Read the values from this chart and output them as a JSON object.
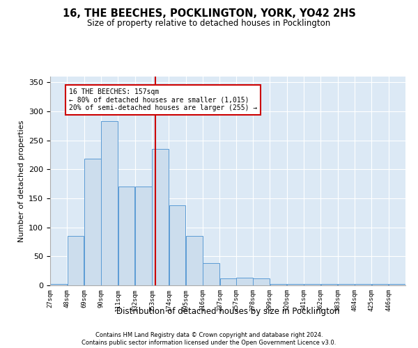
{
  "title1": "16, THE BEECHES, POCKLINGTON, YORK, YO42 2HS",
  "title2": "Size of property relative to detached houses in Pocklington",
  "xlabel": "Distribution of detached houses by size in Pocklington",
  "ylabel": "Number of detached properties",
  "footer1": "Contains HM Land Registry data © Crown copyright and database right 2024.",
  "footer2": "Contains public sector information licensed under the Open Government Licence v3.0.",
  "annotation_title": "16 THE BEECHES: 157sqm",
  "annotation_line2": "← 80% of detached houses are smaller (1,015)",
  "annotation_line3": "20% of semi-detached houses are larger (255) →",
  "property_size": 157,
  "bar_edges": [
    27,
    48,
    69,
    90,
    111,
    132,
    153,
    174,
    195,
    216,
    237,
    257,
    278,
    299,
    320,
    341,
    362,
    383,
    404,
    425,
    446
  ],
  "bar_heights": [
    2,
    85,
    219,
    283,
    170,
    170,
    235,
    138,
    85,
    38,
    12,
    13,
    12,
    2,
    2,
    2,
    2,
    2,
    2,
    2,
    2
  ],
  "bar_color": "#ccdded",
  "bar_edge_color": "#5b9bd5",
  "vline_color": "#cc0000",
  "vline_x": 157,
  "annotation_box_color": "#cc0000",
  "plot_bg_color": "#dce9f5",
  "ylim": [
    0,
    360
  ],
  "yticks": [
    0,
    50,
    100,
    150,
    200,
    250,
    300,
    350
  ]
}
